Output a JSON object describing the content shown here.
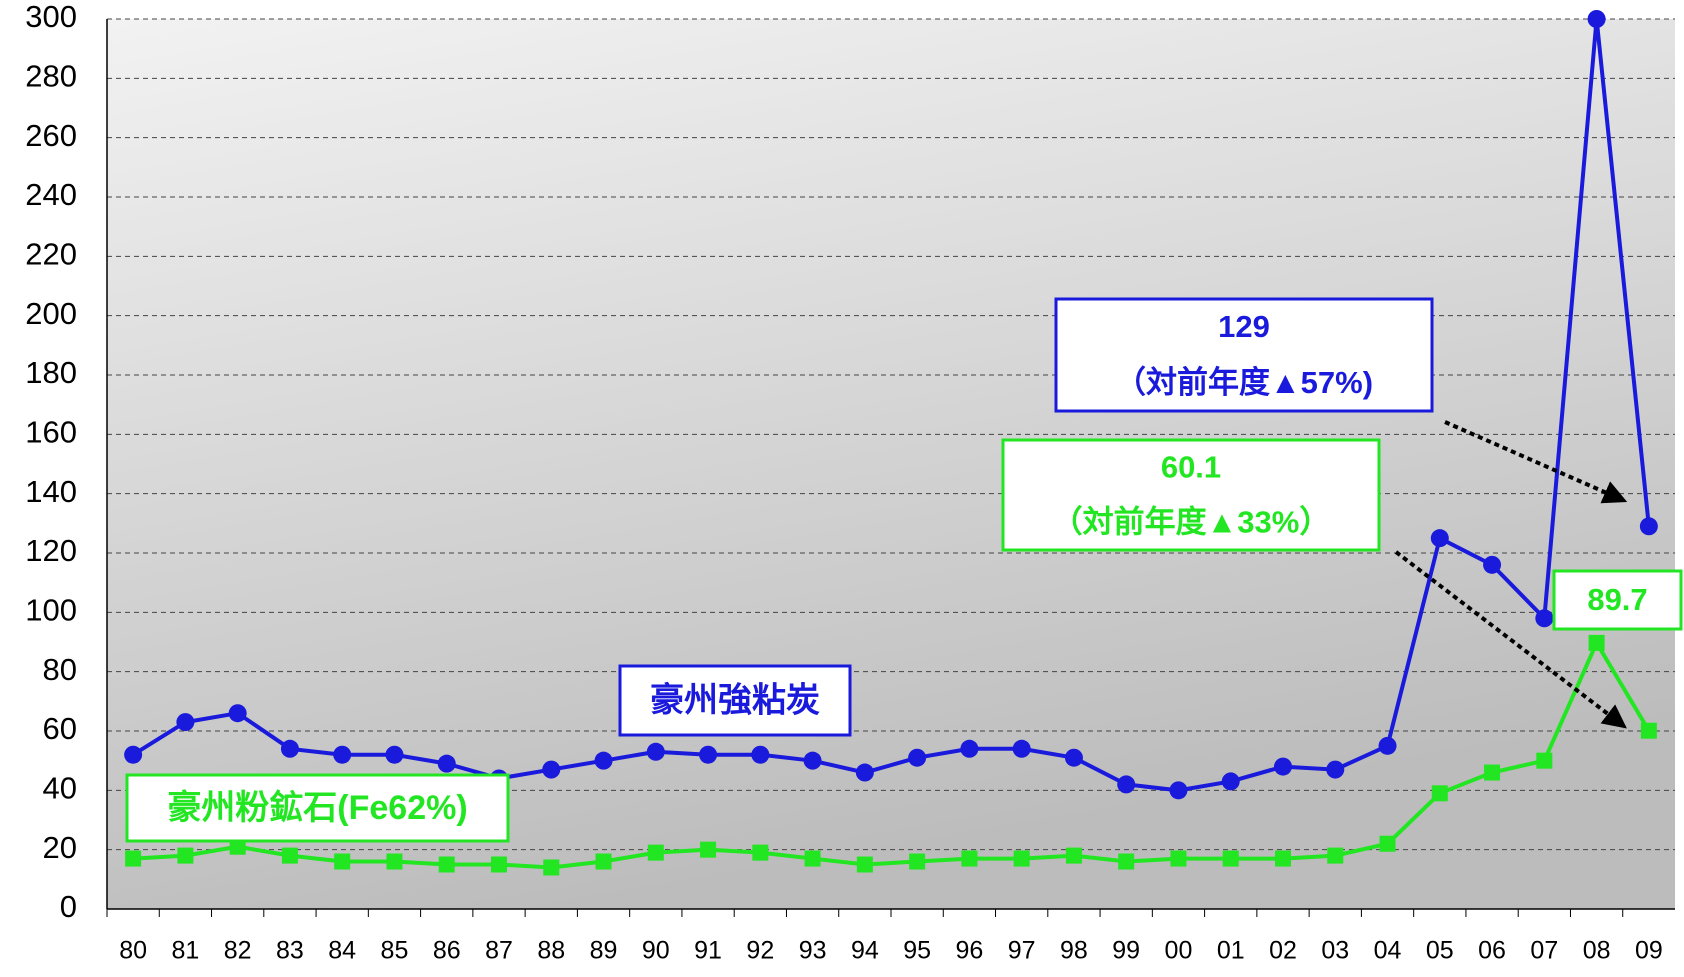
{
  "chart_data": {
    "type": "line",
    "categories": [
      "80",
      "81",
      "82",
      "83",
      "84",
      "85",
      "86",
      "87",
      "88",
      "89",
      "90",
      "91",
      "92",
      "93",
      "94",
      "95",
      "96",
      "97",
      "98",
      "99",
      "00",
      "01",
      "02",
      "03",
      "04",
      "05",
      "06",
      "07",
      "08",
      "09"
    ],
    "series": [
      {
        "name": "豪州強粘炭",
        "color": "#1a1adc",
        "marker": "circle",
        "values": [
          52,
          63,
          66,
          54,
          52,
          52,
          49,
          44,
          47,
          50,
          53,
          52,
          52,
          50,
          46,
          51,
          54,
          54,
          51,
          42,
          40,
          43,
          48,
          47,
          55,
          125,
          116,
          98,
          300,
          129
        ]
      },
      {
        "name": "豪州粉鉱石(Fe62%)",
        "color": "#22e622",
        "marker": "square",
        "values": [
          17,
          18,
          21,
          18,
          16,
          16,
          15,
          15,
          14,
          16,
          19,
          20,
          19,
          17,
          15,
          16,
          17,
          17,
          18,
          16,
          17,
          17,
          17,
          18,
          22,
          39,
          46,
          50,
          89.7,
          60.1
        ]
      }
    ],
    "annotations": [
      {
        "lines": [
          "129",
          "（対前年度▲57%)"
        ],
        "color": "#1a1adc"
      },
      {
        "lines": [
          "60.1",
          "（対前年度▲33%）"
        ],
        "color": "#22e622"
      },
      {
        "lines": [
          "89.7"
        ],
        "color": "#22e622"
      }
    ],
    "ylim": [
      0,
      300
    ],
    "yticks": [
      0,
      20,
      40,
      60,
      80,
      100,
      120,
      140,
      160,
      180,
      200,
      220,
      240,
      260,
      280,
      300
    ],
    "grid": true
  }
}
